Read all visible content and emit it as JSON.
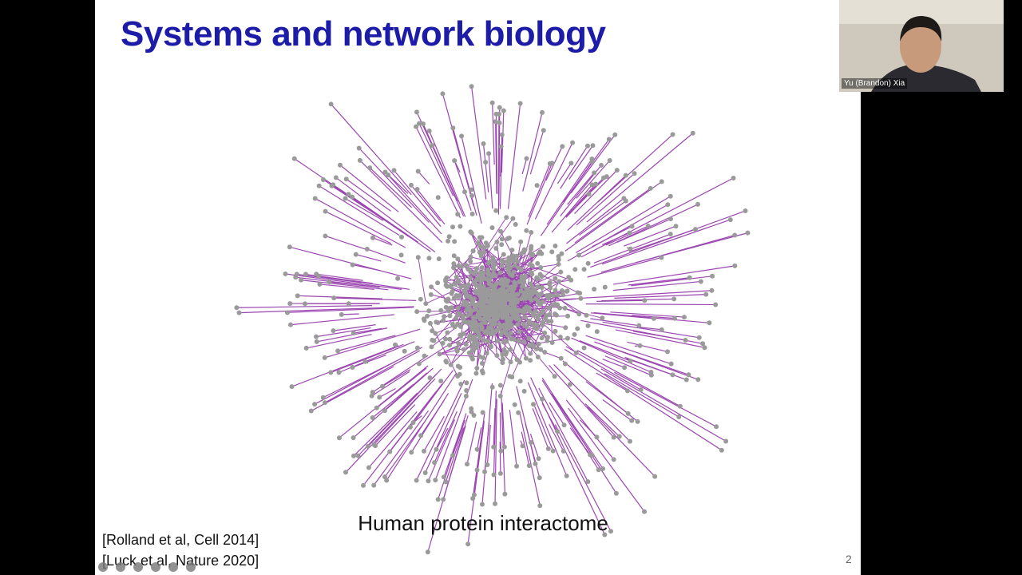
{
  "slide": {
    "title": "Systems and network biology",
    "caption": "Human protein interactome",
    "references": [
      "[Rolland et al, Cell 2014]",
      "[Luck et al, Nature 2020]"
    ],
    "page_number": "2"
  },
  "participant": {
    "name": "Yu (Brandon) Xia"
  }
}
